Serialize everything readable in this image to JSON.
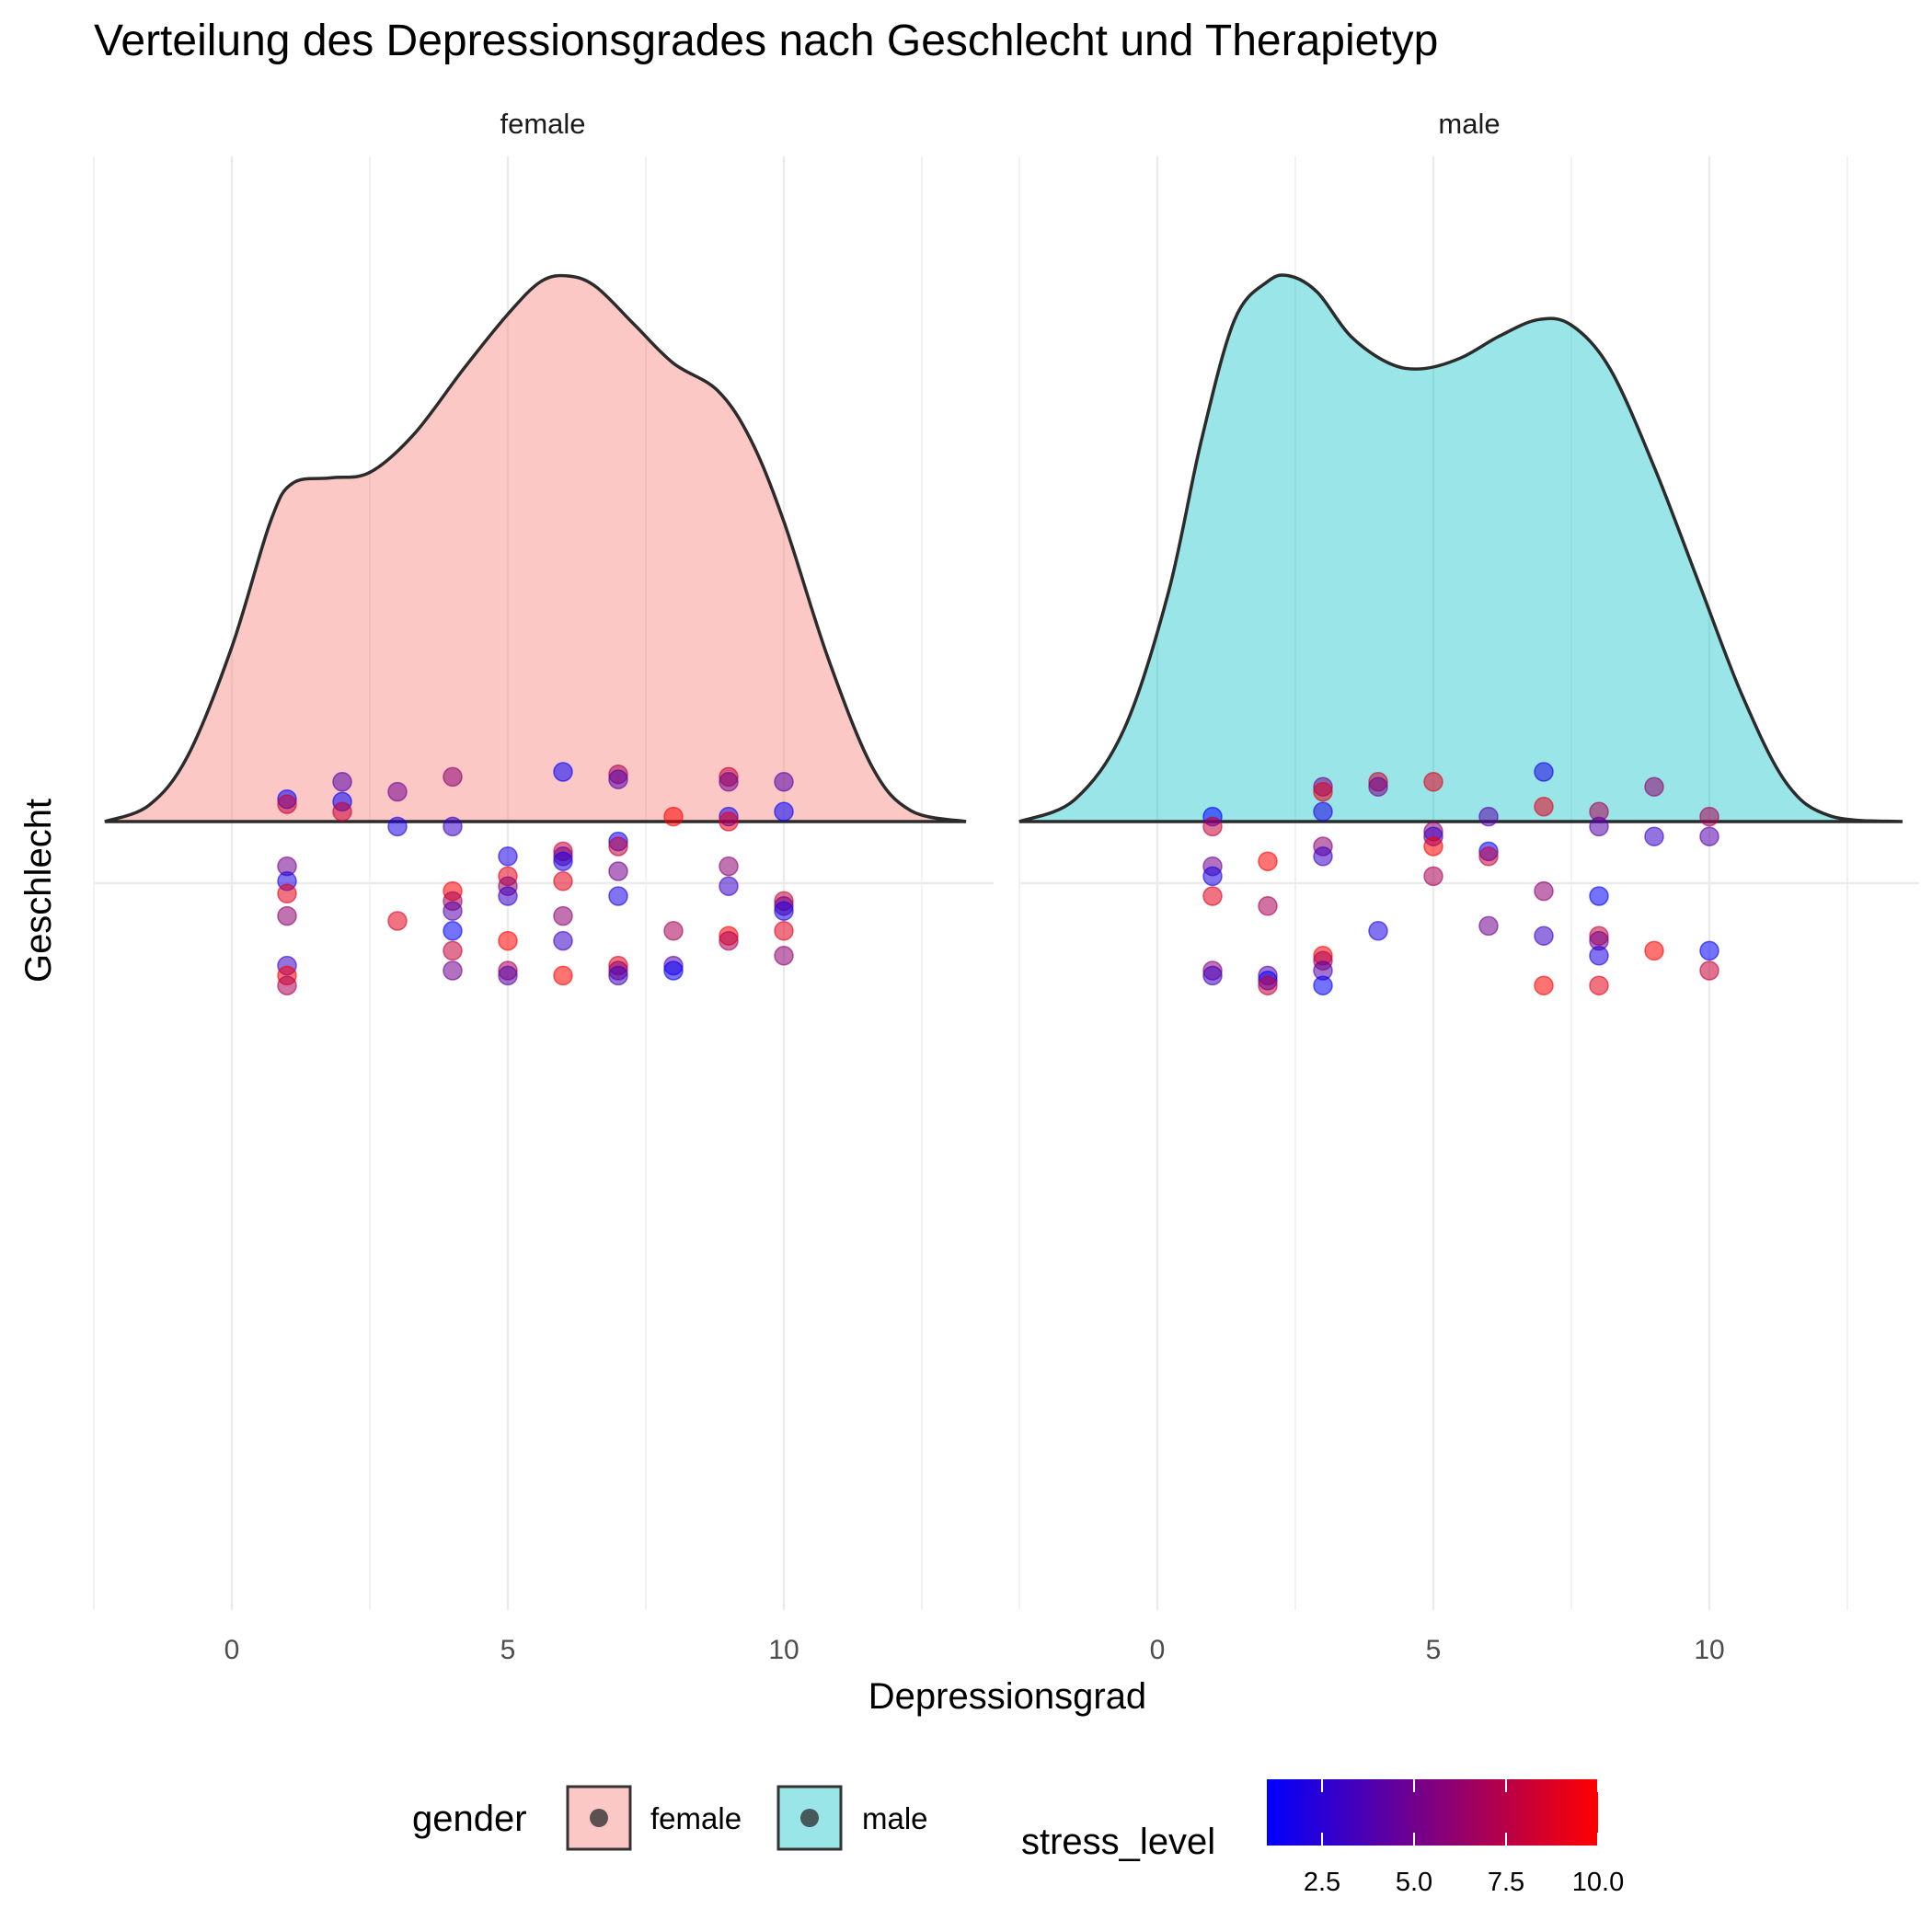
{
  "chart_data": {
    "type": "density",
    "title": "Verteilung des Depressionsgrades nach Geschlecht und Therapietyp",
    "xlabel": "Depressionsgrad",
    "ylabel": "Geschlecht",
    "xlim": [
      -2.5,
      13.8
    ],
    "x_ticks": [
      "0",
      "5",
      "10"
    ],
    "grid": true,
    "facets": [
      {
        "name": "female",
        "fill_color": "#F8766D",
        "density_curve": [
          [
            -2.3,
            0.0
          ],
          [
            -1.5,
            0.03
          ],
          [
            -0.8,
            0.12
          ],
          [
            0.0,
            0.32
          ],
          [
            0.7,
            0.55
          ],
          [
            1.1,
            0.62
          ],
          [
            1.8,
            0.63
          ],
          [
            2.5,
            0.64
          ],
          [
            3.3,
            0.71
          ],
          [
            4.2,
            0.83
          ],
          [
            5.0,
            0.93
          ],
          [
            5.6,
            0.99
          ],
          [
            6.1,
            1.0
          ],
          [
            6.6,
            0.98
          ],
          [
            7.3,
            0.91
          ],
          [
            8.0,
            0.84
          ],
          [
            8.8,
            0.79
          ],
          [
            9.4,
            0.7
          ],
          [
            10.0,
            0.55
          ],
          [
            10.8,
            0.3
          ],
          [
            11.6,
            0.1
          ],
          [
            12.3,
            0.02
          ],
          [
            13.3,
            0.0
          ]
        ],
        "points": [
          [
            1,
            4.5
          ],
          [
            1,
            3.5
          ],
          [
            1,
            -9
          ],
          [
            1,
            -12
          ],
          [
            1,
            -14.5
          ],
          [
            1,
            -19
          ],
          [
            1,
            -29
          ],
          [
            1,
            -31
          ],
          [
            1,
            -33
          ],
          [
            2,
            8
          ],
          [
            2,
            4
          ],
          [
            2,
            2
          ],
          [
            3,
            6
          ],
          [
            3,
            -1
          ],
          [
            3,
            -20
          ],
          [
            4,
            9
          ],
          [
            4,
            -1
          ],
          [
            4,
            -14
          ],
          [
            4,
            -16
          ],
          [
            4,
            -18
          ],
          [
            4,
            -22
          ],
          [
            4,
            -26
          ],
          [
            4,
            -30
          ],
          [
            5,
            -7
          ],
          [
            5,
            -11
          ],
          [
            5,
            -13
          ],
          [
            5,
            -15
          ],
          [
            5,
            -24
          ],
          [
            5,
            -30
          ],
          [
            5,
            -31
          ],
          [
            6,
            10
          ],
          [
            6,
            -6
          ],
          [
            6,
            -7
          ],
          [
            6,
            -8
          ],
          [
            6,
            -12
          ],
          [
            6,
            -19
          ],
          [
            6,
            -24
          ],
          [
            6,
            -31
          ],
          [
            7,
            9.5
          ],
          [
            7,
            8.5
          ],
          [
            7,
            -4
          ],
          [
            7,
            -5
          ],
          [
            7,
            -10
          ],
          [
            7,
            -15
          ],
          [
            7,
            -29
          ],
          [
            7,
            -30
          ],
          [
            7,
            -31
          ],
          [
            8,
            1
          ],
          [
            8,
            -22
          ],
          [
            8,
            -29
          ],
          [
            8,
            -30
          ],
          [
            9,
            9
          ],
          [
            9,
            8
          ],
          [
            9,
            1
          ],
          [
            9,
            0
          ],
          [
            9,
            -9
          ],
          [
            9,
            -13
          ],
          [
            9,
            -23
          ],
          [
            9,
            -24
          ],
          [
            10,
            8
          ],
          [
            10,
            2
          ],
          [
            10,
            -16
          ],
          [
            10,
            -17
          ],
          [
            10,
            -18
          ],
          [
            10,
            -22
          ],
          [
            10,
            -27
          ]
        ]
      },
      {
        "name": "male",
        "fill_color": "#00BFC4",
        "density_curve": [
          [
            -2.5,
            0.0
          ],
          [
            -1.5,
            0.04
          ],
          [
            -0.6,
            0.17
          ],
          [
            0.2,
            0.42
          ],
          [
            0.8,
            0.7
          ],
          [
            1.4,
            0.92
          ],
          [
            2.0,
            0.99
          ],
          [
            2.4,
            1.0
          ],
          [
            2.9,
            0.97
          ],
          [
            3.5,
            0.89
          ],
          [
            4.2,
            0.84
          ],
          [
            4.8,
            0.83
          ],
          [
            5.5,
            0.85
          ],
          [
            6.2,
            0.89
          ],
          [
            6.9,
            0.92
          ],
          [
            7.5,
            0.91
          ],
          [
            8.2,
            0.83
          ],
          [
            9.0,
            0.65
          ],
          [
            9.8,
            0.44
          ],
          [
            10.6,
            0.23
          ],
          [
            11.4,
            0.07
          ],
          [
            12.2,
            0.01
          ],
          [
            13.5,
            0.0
          ]
        ],
        "points": [
          [
            1,
            1
          ],
          [
            1,
            -1
          ],
          [
            1,
            -9
          ],
          [
            1,
            -11
          ],
          [
            1,
            -15
          ],
          [
            1,
            -30
          ],
          [
            1,
            -31
          ],
          [
            2,
            -8
          ],
          [
            2,
            -17
          ],
          [
            2,
            -31
          ],
          [
            2,
            -32
          ],
          [
            2,
            -33
          ],
          [
            3,
            7
          ],
          [
            3,
            2
          ],
          [
            3,
            6
          ],
          [
            3,
            -5
          ],
          [
            3,
            -7
          ],
          [
            3,
            -27
          ],
          [
            3,
            -28
          ],
          [
            3,
            -30
          ],
          [
            3,
            -33
          ],
          [
            4,
            8
          ],
          [
            4,
            7
          ],
          [
            4,
            -22
          ],
          [
            5,
            8
          ],
          [
            5,
            -2
          ],
          [
            5,
            -3
          ],
          [
            5,
            -5
          ],
          [
            5,
            -11
          ],
          [
            6,
            1
          ],
          [
            6,
            -6
          ],
          [
            6,
            -7
          ],
          [
            6,
            -21
          ],
          [
            7,
            10
          ],
          [
            7,
            3
          ],
          [
            7,
            -14
          ],
          [
            7,
            -23
          ],
          [
            7,
            -33
          ],
          [
            8,
            2
          ],
          [
            8,
            -1
          ],
          [
            8,
            -15
          ],
          [
            8,
            -23
          ],
          [
            8,
            -24
          ],
          [
            8,
            -27
          ],
          [
            8,
            -33
          ],
          [
            9,
            7
          ],
          [
            9,
            -3
          ],
          [
            9,
            -26
          ],
          [
            10,
            1
          ],
          [
            10,
            -3
          ],
          [
            10,
            -26
          ],
          [
            10,
            -30
          ]
        ]
      }
    ],
    "legend": {
      "position": "bottom",
      "gender_title": "gender",
      "gender_entries": [
        {
          "label": "female",
          "color": "#F8766D"
        },
        {
          "label": "male",
          "color": "#00BFC4"
        }
      ],
      "color_title": "stress_level",
      "color_low": "#0000FF",
      "color_high": "#FF0000",
      "color_range": [
        1,
        10
      ],
      "color_ticks": [
        "2.5",
        "5.0",
        "7.5",
        "10.0"
      ]
    }
  }
}
